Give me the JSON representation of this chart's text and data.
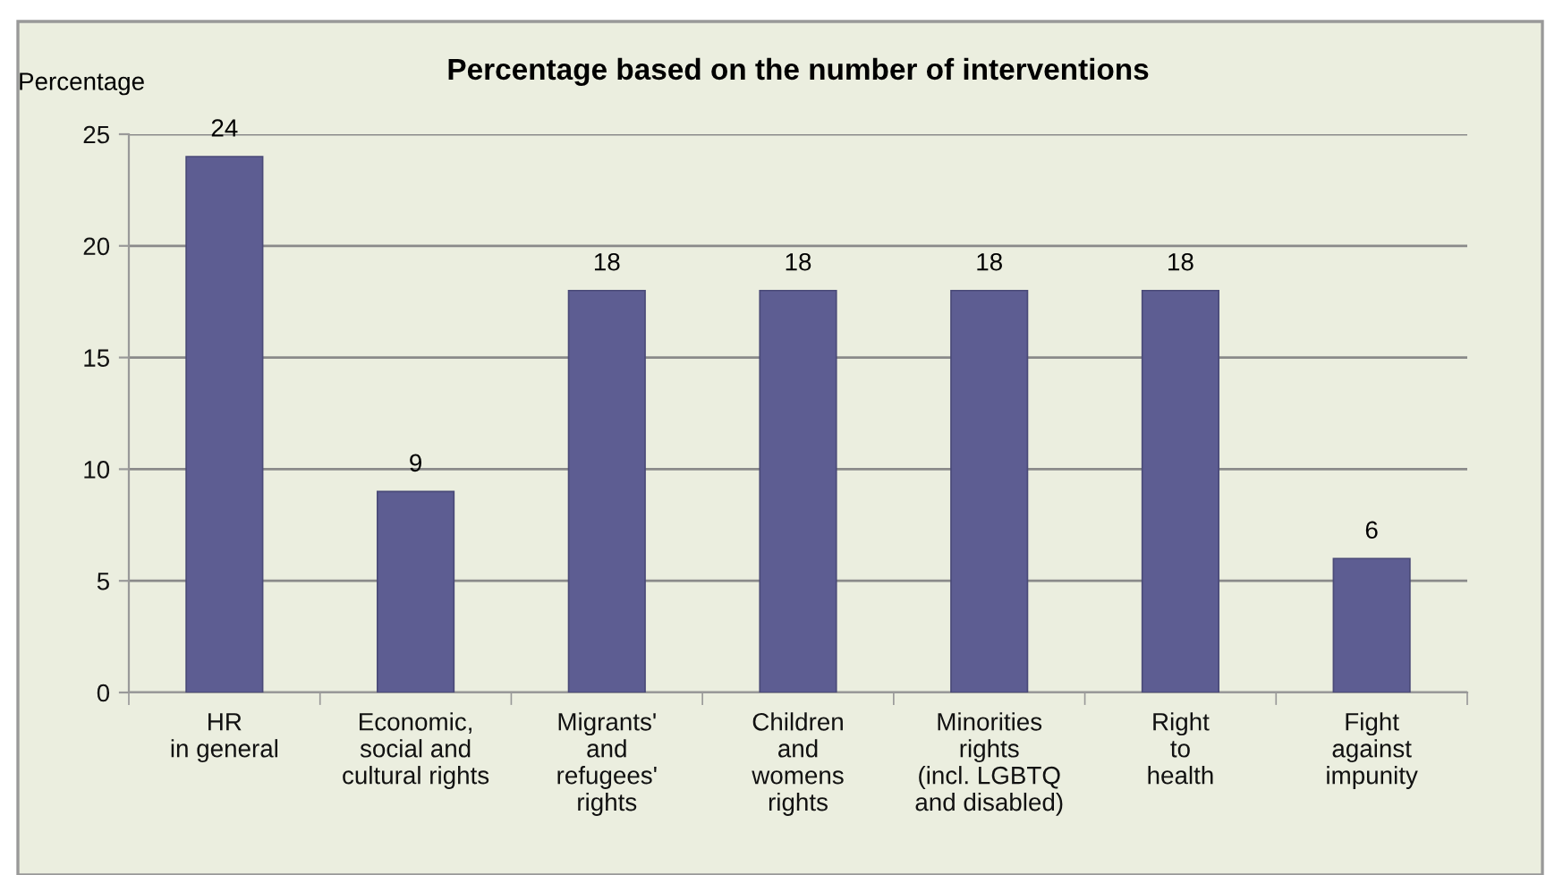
{
  "chart_data": {
    "type": "bar",
    "title": "Percentage based on the number of interventions",
    "ylabel": "Percentage",
    "categories": [
      "HR\nin general",
      "Economic,\nsocial and\ncultural rights",
      "Migrants'\nand\nrefugees'\nrights",
      "Children\nand\nwomens\nrights",
      "Minorities\nrights\n(incl. LGBTQ\nand disabled)",
      "Right\nto\nhealth",
      "Fight\nagainst\nimpunity"
    ],
    "values": [
      24,
      9,
      18,
      18,
      18,
      18,
      6
    ],
    "color": "#5d5d92",
    "ylim": [
      0,
      25
    ],
    "yticks": [
      0,
      5,
      10,
      15,
      20,
      25
    ],
    "grid": "y",
    "data_labels": true
  }
}
